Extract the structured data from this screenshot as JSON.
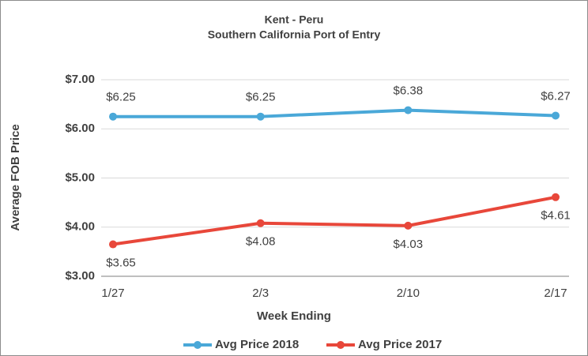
{
  "chart_data": {
    "type": "line",
    "title": "Kent - Peru",
    "subtitle": "Southern California Port of Entry",
    "x_label": "Week Ending",
    "y_label": "Average FOB Price",
    "categories": [
      "1/27",
      "2/3",
      "2/10",
      "2/17"
    ],
    "series": [
      {
        "name": "Avg Price 2018",
        "color": "#4aa8d8",
        "values": [
          6.25,
          6.25,
          6.38,
          6.27
        ],
        "value_labels": [
          "$6.25",
          "$6.25",
          "$6.38",
          "$6.27"
        ]
      },
      {
        "name": "Avg Price 2017",
        "color": "#e8473a",
        "values": [
          3.65,
          4.08,
          4.03,
          4.61
        ],
        "value_labels": [
          "$3.65",
          "$4.08",
          "$4.03",
          "$4.61"
        ]
      }
    ],
    "ylim": [
      3,
      7
    ],
    "yticks": [
      {
        "value": 3,
        "label": "$3.00"
      },
      {
        "value": 4,
        "label": "$4.00"
      },
      {
        "value": 5,
        "label": "$5.00"
      },
      {
        "value": 6,
        "label": "$6.00"
      },
      {
        "value": 7,
        "label": "$7.00"
      }
    ],
    "grid": true,
    "legend": "bottom"
  }
}
